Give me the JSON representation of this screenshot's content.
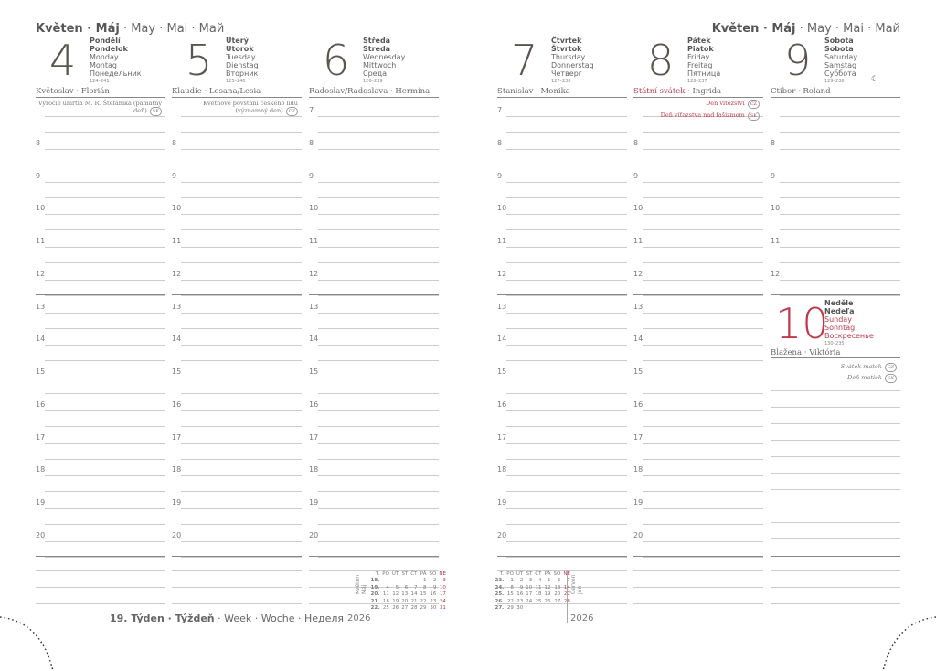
{
  "header": {
    "month_bold": "Květen · Máj",
    "month_rest": " · May · Mai · Май"
  },
  "days": [
    {
      "num": "4",
      "cz": "Pondělí",
      "sk": "Pondelok",
      "en": "Monday",
      "de": "Montag",
      "ru": "Понедельник",
      "count": "124–241",
      "names": "Květoslav · Florián",
      "holidays": [
        {
          "text": "Výročie úmrtia M. R. Štefánika (pamätný deň)",
          "badge": "SK"
        }
      ]
    },
    {
      "num": "5",
      "cz": "Úterý",
      "sk": "Utorok",
      "en": "Tuesday",
      "de": "Dienstag",
      "ru": "Вторник",
      "count": "125–240",
      "names": "Klaudie · Lesana/Lesia",
      "holidays": [
        {
          "text": "Květnové povstání českého lidu (významný den)",
          "badge": "CZ"
        }
      ]
    },
    {
      "num": "6",
      "cz": "Středa",
      "sk": "Streda",
      "en": "Wednesday",
      "de": "Mittwoch",
      "ru": "Среда",
      "count": "126–239",
      "names": "Radoslav/Radoslava · Hermína",
      "holidays": []
    },
    {
      "num": "7",
      "cz": "Čtvrtek",
      "sk": "Štvrtok",
      "en": "Thursday",
      "de": "Donnerstag",
      "ru": "Четверг",
      "count": "127–238",
      "names": "Stanislav · Monika",
      "holidays": []
    },
    {
      "num": "8",
      "cz": "Pátek",
      "sk": "Piatok",
      "en": "Friday",
      "de": "Freitag",
      "ru": "Пятница",
      "count": "128–237",
      "names_red": "Státní svátek",
      "names": " · Ingrida",
      "holidays": [
        {
          "text": "Den vítězství",
          "badge": "CZ"
        },
        {
          "text": "Deň víťazstva nad fašizmom",
          "badge": "SK"
        }
      ]
    },
    {
      "num": "9",
      "cz": "Sobota",
      "sk": "Sobota",
      "en": "Saturday",
      "de": "Samstag",
      "ru": "Суббота",
      "count": "129–236",
      "names": "Ctibor · Roland",
      "moon": "☾"
    }
  ],
  "sunday": {
    "num": "10",
    "cz": "Neděle",
    "sk": "Nedeľa",
    "en": "Sunday",
    "de": "Sonntag",
    "ru": "Воскресенье",
    "count": "130–235",
    "names": "Blažena · Viktória",
    "holidays": [
      {
        "text": "Svátek matek",
        "badge": "CZ"
      },
      {
        "text": "Deň matiek",
        "badge": "SK"
      }
    ]
  },
  "hours": [
    "7",
    "8",
    "9",
    "10",
    "11",
    "12",
    "13",
    "14",
    "15",
    "16",
    "17",
    "18",
    "19",
    "20"
  ],
  "week_label": {
    "bold": "19. Týden · Týždeň",
    "rest": " · Week · Woche · Неделя"
  },
  "year": "2026",
  "mini_may": {
    "label1": "Květen",
    "label2": "Máj",
    "head": [
      "T.",
      "PO",
      "ÚT",
      "ST",
      "ČT",
      "PÁ",
      "SO",
      "NE"
    ],
    "rows": [
      [
        "18.",
        "",
        "",
        "",
        "",
        "1",
        "2",
        "3"
      ],
      [
        "19.",
        "4",
        "5",
        "6",
        "7",
        "8",
        "9",
        "10"
      ],
      [
        "20.",
        "11",
        "12",
        "13",
        "14",
        "15",
        "16",
        "17"
      ],
      [
        "21.",
        "18",
        "19",
        "20",
        "21",
        "22",
        "23",
        "24"
      ],
      [
        "22.",
        "25",
        "26",
        "27",
        "28",
        "29",
        "30",
        "31"
      ]
    ]
  },
  "mini_jun": {
    "label1": "Červen",
    "label2": "Jún",
    "head": [
      "T.",
      "PO",
      "ÚT",
      "ST",
      "ČT",
      "PÁ",
      "SO",
      "NE"
    ],
    "rows": [
      [
        "23.",
        "1",
        "2",
        "3",
        "4",
        "5",
        "6",
        "7"
      ],
      [
        "24.",
        "8",
        "9",
        "10",
        "11",
        "12",
        "13",
        "14"
      ],
      [
        "25.",
        "15",
        "16",
        "17",
        "18",
        "19",
        "20",
        "21"
      ],
      [
        "26.",
        "22",
        "23",
        "24",
        "25",
        "26",
        "27",
        "28"
      ],
      [
        "27.",
        "29",
        "30",
        "",
        "",
        "",
        "",
        ""
      ]
    ]
  },
  "colors": {
    "accent": "#c0394b",
    "text": "#555555"
  }
}
